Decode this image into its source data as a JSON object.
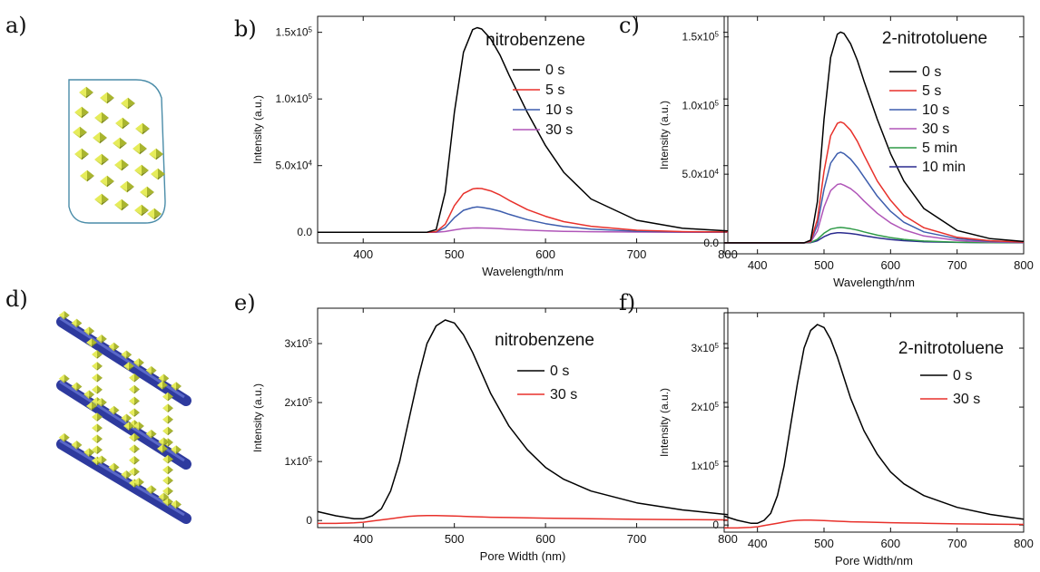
{
  "panel_letters": {
    "a": "a)",
    "b": "b)",
    "c": "c)",
    "d": "d)",
    "e": "e)",
    "f": "f)"
  },
  "chart_data": [
    {
      "type": "line",
      "panel": "b",
      "title": "nitrobenzene",
      "xlabel": "Wavelength/nm",
      "ylabel": "Intensity (a.u.)",
      "xlim": [
        350,
        800
      ],
      "ylim": [
        -8000,
        162000
      ],
      "x_ticks": [
        400,
        500,
        600,
        700,
        800
      ],
      "y_ticks": [
        {
          "value": 0,
          "label": "0.0"
        },
        {
          "value": 50000,
          "label": "5.0x10^4"
        },
        {
          "value": 100000,
          "label": "1.0x10^5"
        },
        {
          "value": 150000,
          "label": "1.5x10^5"
        }
      ],
      "x": [
        350,
        470,
        480,
        490,
        500,
        510,
        520,
        525,
        530,
        540,
        550,
        560,
        580,
        600,
        620,
        650,
        700,
        750,
        800
      ],
      "series": [
        {
          "name": "0 s",
          "color": "#000000",
          "values": [
            0,
            0,
            2000,
            30000,
            90000,
            135000,
            152000,
            153500,
            152500,
            145000,
            133000,
            118000,
            90000,
            65000,
            45000,
            25000,
            9000,
            3000,
            1000
          ]
        },
        {
          "name": "5 s",
          "color": "#e8312b",
          "values": [
            0,
            0,
            400,
            6000,
            20000,
            29000,
            32500,
            33000,
            32800,
            31000,
            28000,
            24000,
            17000,
            12000,
            8000,
            4500,
            1500,
            500,
            200
          ]
        },
        {
          "name": "10 s",
          "color": "#3d5dad",
          "values": [
            0,
            0,
            200,
            3500,
            11000,
            16500,
            18500,
            19000,
            18700,
            17500,
            15800,
            13500,
            9500,
            6500,
            4300,
            2400,
            800,
            300,
            100
          ]
        },
        {
          "name": "30 s",
          "color": "#b055b8",
          "values": [
            0,
            0,
            50,
            600,
            1800,
            2800,
            3200,
            3300,
            3200,
            3000,
            2700,
            2300,
            1600,
            1100,
            700,
            400,
            150,
            50,
            0
          ]
        }
      ]
    },
    {
      "type": "line",
      "panel": "c",
      "title": "2-nitrotoluene",
      "xlabel": "Wavelength/nm",
      "ylabel": "Intensity (a.u.)",
      "xlim": [
        350,
        800
      ],
      "ylim": [
        -8000,
        165000
      ],
      "x_ticks": [
        400,
        500,
        600,
        700,
        800
      ],
      "y_ticks": [
        {
          "value": 0,
          "label": "0.0"
        },
        {
          "value": 50000,
          "label": "5.0x10^4"
        },
        {
          "value": 100000,
          "label": "1.0x10^5"
        },
        {
          "value": 150000,
          "label": "1.5x10^5"
        }
      ],
      "x": [
        350,
        470,
        480,
        490,
        500,
        510,
        520,
        525,
        530,
        540,
        550,
        560,
        580,
        600,
        620,
        650,
        700,
        750,
        800
      ],
      "series": [
        {
          "name": "0 s",
          "color": "#000000",
          "values": [
            0,
            0,
            2000,
            30000,
            90000,
            135000,
            152000,
            153500,
            152500,
            145000,
            133000,
            118000,
            90000,
            65000,
            45000,
            25000,
            9000,
            3000,
            1000
          ]
        },
        {
          "name": "5 s",
          "color": "#e8312b",
          "values": [
            0,
            0,
            1200,
            17000,
            52000,
            78000,
            87000,
            88000,
            87000,
            82000,
            74000,
            64000,
            45000,
            31000,
            20000,
            11000,
            4000,
            1500,
            500
          ]
        },
        {
          "name": "10 s",
          "color": "#3d5dad",
          "values": [
            0,
            0,
            900,
            13000,
            39000,
            58000,
            65000,
            66000,
            65000,
            61000,
            55000,
            48000,
            34000,
            23000,
            15000,
            8000,
            3000,
            1000,
            400
          ]
        },
        {
          "name": "30 s",
          "color": "#b055b8",
          "values": [
            0,
            0,
            600,
            8500,
            26000,
            38000,
            42500,
            43000,
            42000,
            39500,
            35500,
            30500,
            21500,
            14500,
            9500,
            5000,
            1800,
            600,
            200
          ]
        },
        {
          "name": "5 min",
          "color": "#2e9a47",
          "values": [
            0,
            0,
            200,
            2500,
            7000,
            10000,
            11000,
            11200,
            11000,
            10300,
            9300,
            8000,
            5600,
            3800,
            2500,
            1300,
            450,
            150,
            50
          ]
        },
        {
          "name": "10 min",
          "color": "#2b2b8f",
          "values": [
            0,
            0,
            100,
            1500,
            4500,
            6600,
            7300,
            7400,
            7200,
            6800,
            6100,
            5200,
            3600,
            2400,
            1600,
            800,
            300,
            100,
            0
          ]
        }
      ]
    },
    {
      "type": "line",
      "panel": "e",
      "title": "nitrobenzene",
      "xlabel": "Pore Width (nm)",
      "ylabel": "Intensity (a.u.)",
      "xlim": [
        350,
        800
      ],
      "ylim": [
        -12000,
        360000
      ],
      "x_ticks": [
        400,
        500,
        600,
        700,
        800
      ],
      "y_ticks": [
        {
          "value": 0,
          "label": "0"
        },
        {
          "value": 100000,
          "label": "1x10^5"
        },
        {
          "value": 200000,
          "label": "2x10^5"
        },
        {
          "value": 300000,
          "label": "3x10^5"
        }
      ],
      "x": [
        350,
        370,
        390,
        400,
        410,
        420,
        430,
        440,
        450,
        460,
        470,
        480,
        490,
        500,
        510,
        520,
        530,
        540,
        560,
        580,
        600,
        620,
        650,
        700,
        750,
        800
      ],
      "series": [
        {
          "name": "0 s",
          "color": "#000000",
          "values": [
            15000,
            8000,
            3000,
            3000,
            8000,
            20000,
            50000,
            100000,
            170000,
            240000,
            300000,
            330000,
            340000,
            335000,
            315000,
            285000,
            250000,
            215000,
            160000,
            120000,
            90000,
            70000,
            50000,
            30000,
            18000,
            10000
          ]
        },
        {
          "name": "30 s",
          "color": "#e8312b",
          "values": [
            -5000,
            -5000,
            -4000,
            -3000,
            -1000,
            1000,
            3000,
            5000,
            7000,
            8000,
            8500,
            8500,
            8000,
            7500,
            7000,
            6500,
            6000,
            5500,
            5000,
            4500,
            4000,
            3500,
            3000,
            2000,
            1500,
            1000
          ]
        }
      ]
    },
    {
      "type": "line",
      "panel": "f",
      "title": "2-nitrotoluene",
      "xlabel": "Pore Width/nm",
      "ylabel": "Intensity (a.u.)",
      "xlim": [
        350,
        800
      ],
      "ylim": [
        -12000,
        360000
      ],
      "x_ticks": [
        400,
        500,
        600,
        700,
        800
      ],
      "y_ticks": [
        {
          "value": 0,
          "label": "0"
        },
        {
          "value": 100000,
          "label": "1x10^5"
        },
        {
          "value": 200000,
          "label": "2x10^5"
        },
        {
          "value": 300000,
          "label": "3x10^5"
        }
      ],
      "x": [
        350,
        370,
        390,
        400,
        410,
        420,
        430,
        440,
        450,
        460,
        470,
        480,
        490,
        500,
        510,
        520,
        530,
        540,
        560,
        580,
        600,
        620,
        650,
        700,
        750,
        800
      ],
      "series": [
        {
          "name": "0 s",
          "color": "#000000",
          "values": [
            15000,
            8000,
            3000,
            3000,
            8000,
            20000,
            50000,
            100000,
            170000,
            240000,
            300000,
            330000,
            340000,
            335000,
            315000,
            285000,
            250000,
            215000,
            160000,
            120000,
            90000,
            70000,
            50000,
            30000,
            18000,
            10000
          ]
        },
        {
          "name": "30 s",
          "color": "#e8312b",
          "values": [
            -5000,
            -5000,
            -4000,
            -3000,
            -1000,
            1000,
            3000,
            5000,
            7000,
            8000,
            8500,
            8500,
            8000,
            7500,
            7000,
            6500,
            6000,
            5500,
            5000,
            4500,
            4000,
            3500,
            3000,
            2000,
            1500,
            1000
          ]
        }
      ]
    }
  ]
}
